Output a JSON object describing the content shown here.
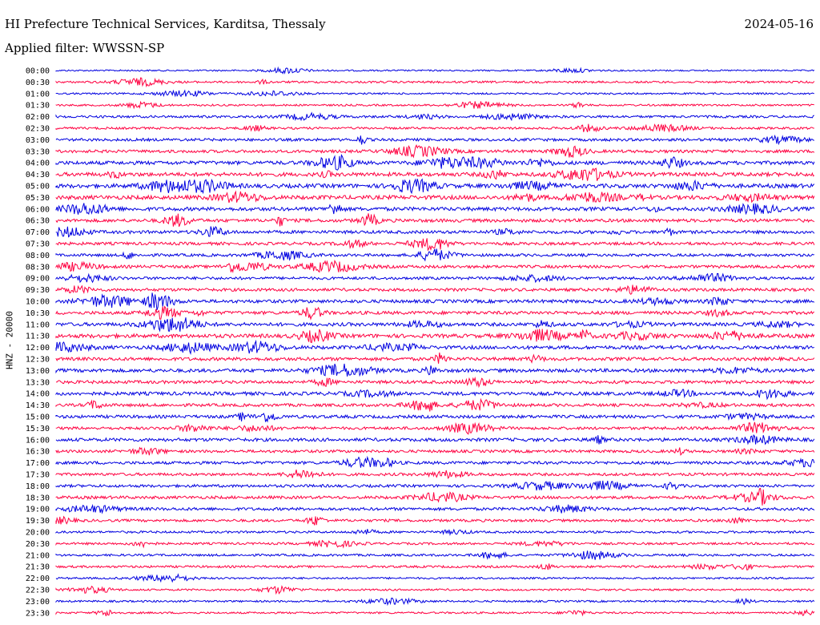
{
  "header": {
    "title": "HI Prefecture Technical Services, Karditsa, Thessaly",
    "date": "2024-05-16",
    "filter": "Applied filter: WWSSN-SP"
  },
  "chart_data": {
    "type": "line",
    "ylabel": "HNZ - 20000",
    "trace_colors": [
      "#0000e0",
      "#ff0040"
    ],
    "row_labels": [
      "00:00",
      "00:30",
      "01:00",
      "01:30",
      "02:00",
      "02:30",
      "03:00",
      "03:30",
      "04:00",
      "04:30",
      "05:00",
      "05:30",
      "06:00",
      "06:30",
      "07:00",
      "07:30",
      "08:00",
      "08:30",
      "09:00",
      "09:30",
      "10:00",
      "10:30",
      "11:00",
      "11:30",
      "12:00",
      "12:30",
      "13:00",
      "13:30",
      "14:00",
      "14:30",
      "15:00",
      "15:30",
      "16:00",
      "16:30",
      "17:00",
      "17:30",
      "18:00",
      "18:30",
      "19:00",
      "19:30",
      "20:00",
      "20:30",
      "21:00",
      "21:30",
      "22:00",
      "22:30",
      "23:00",
      "23:30"
    ],
    "activity": [
      0.15,
      0.3,
      0.2,
      0.25,
      0.4,
      0.35,
      0.5,
      0.55,
      0.75,
      0.8,
      0.85,
      0.85,
      0.75,
      0.65,
      0.6,
      0.55,
      0.5,
      0.55,
      0.5,
      0.55,
      0.65,
      0.65,
      0.7,
      0.8,
      0.7,
      0.65,
      0.7,
      0.6,
      0.7,
      0.55,
      0.6,
      0.5,
      0.65,
      0.5,
      0.55,
      0.5,
      0.5,
      0.55,
      0.55,
      0.45,
      0.35,
      0.35,
      0.35,
      0.35,
      0.25,
      0.25,
      0.25,
      0.25
    ]
  }
}
